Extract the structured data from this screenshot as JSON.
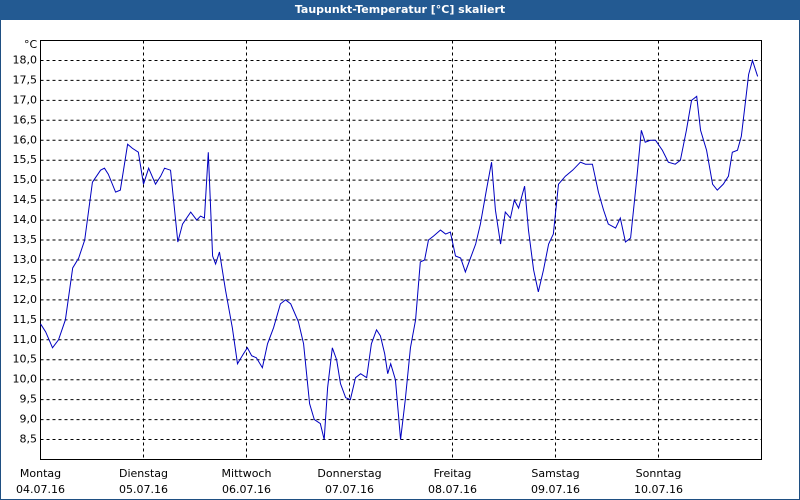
{
  "chart_data": {
    "type": "line",
    "title": "Taupunkt-Temperatur [°C] skaliert",
    "y_unit": "°C",
    "xlim": [
      0,
      168
    ],
    "ylim": [
      8,
      18.5
    ],
    "xticks": [
      {
        "value": 0,
        "label": "Montag",
        "date": "04.07.16"
      },
      {
        "value": 24,
        "label": "Dienstag",
        "date": "05.07.16"
      },
      {
        "value": 48,
        "label": "Mittwoch",
        "date": "06.07.16"
      },
      {
        "value": 72,
        "label": "Donnerstag",
        "date": "07.07.16"
      },
      {
        "value": 96,
        "label": "Freitag",
        "date": "08.07.16"
      },
      {
        "value": 120,
        "label": "Samstag",
        "date": "09.07.16"
      },
      {
        "value": 144,
        "label": "Sonntag",
        "date": "10.07.16"
      }
    ],
    "yticks": [
      {
        "value": 8.5,
        "label": "8,5"
      },
      {
        "value": 9,
        "label": "9,0"
      },
      {
        "value": 9.5,
        "label": "9,5"
      },
      {
        "value": 10,
        "label": "10,0"
      },
      {
        "value": 10.5,
        "label": "10,5"
      },
      {
        "value": 11,
        "label": "11,0"
      },
      {
        "value": 11.5,
        "label": "11,5"
      },
      {
        "value": 12,
        "label": "12,0"
      },
      {
        "value": 12.5,
        "label": "12,5"
      },
      {
        "value": 13,
        "label": "13,0"
      },
      {
        "value": 13.5,
        "label": "13,5"
      },
      {
        "value": 14,
        "label": "14,0"
      },
      {
        "value": 14.5,
        "label": "14,5"
      },
      {
        "value": 15,
        "label": "15,0"
      },
      {
        "value": 15.5,
        "label": "15,5"
      },
      {
        "value": 16,
        "label": "16,0"
      },
      {
        "value": 16.5,
        "label": "16,5"
      },
      {
        "value": 17,
        "label": "17,0"
      },
      {
        "value": 17.5,
        "label": "17,5"
      },
      {
        "value": 18,
        "label": "18,0"
      }
    ],
    "grid": true,
    "x": [
      0,
      1.2,
      2.8,
      4.2,
      5.8,
      7.5,
      8.9,
      10.3,
      12.1,
      14.0,
      14.9,
      15.8,
      17.5,
      18.6,
      20.3,
      21.4,
      22.8,
      24.0,
      25.2,
      26.8,
      28.0,
      28.9,
      30.3,
      32.0,
      33.1,
      35.0,
      36.4,
      37.3,
      38.2,
      39.1,
      40.1,
      40.8,
      41.7,
      43.1,
      44.7,
      45.9,
      47.3,
      48.2,
      49.2,
      50.3,
      51.7,
      52.9,
      54.3,
      55.9,
      57.1,
      58.3,
      60.1,
      61.3,
      62.7,
      63.8,
      65.2,
      66.1,
      66.9,
      68.0,
      69.0,
      69.9,
      71.1,
      72.2,
      73.4,
      74.6,
      76.0,
      77.1,
      78.3,
      79.2,
      80.2,
      80.9,
      81.6,
      82.7,
      83.9,
      85.0,
      86.2,
      87.4,
      88.5,
      89.5,
      90.4,
      91.6,
      93.2,
      94.4,
      95.5,
      96.7,
      97.9,
      99.0,
      100.2,
      101.4,
      102.5,
      103.9,
      105.1,
      106.0,
      107.2,
      108.3,
      109.5,
      110.4,
      111.4,
      112.8,
      113.7,
      114.9,
      116.0,
      117.2,
      118.4,
      119.5,
      120.7,
      122.3,
      124.0,
      125.8,
      127.0,
      128.6,
      130.0,
      131.2,
      132.3,
      134.0,
      135.1,
      136.3,
      137.5,
      138.9,
      140.0,
      140.9,
      142.1,
      143.3,
      144.9,
      146.3,
      147.9,
      149.1,
      150.5,
      151.7,
      152.9,
      153.8,
      155.2,
      156.6,
      157.7,
      159.1,
      160.3,
      161.2,
      162.4,
      163.3,
      164.3,
      165.0,
      165.9,
      167.1
    ],
    "series": [
      {
        "color": "#0000c0",
        "values": [
          11.4,
          11.2,
          10.8,
          11.0,
          11.5,
          12.8,
          13.05,
          13.5,
          14.95,
          15.25,
          15.3,
          15.15,
          14.7,
          14.75,
          15.9,
          15.8,
          15.7,
          14.9,
          15.3,
          14.9,
          15.1,
          15.3,
          15.25,
          13.45,
          13.9,
          14.2,
          14.0,
          14.1,
          14.05,
          15.7,
          13.1,
          12.9,
          13.2,
          12.25,
          11.3,
          10.4,
          10.65,
          10.8,
          10.6,
          10.55,
          10.3,
          10.9,
          11.3,
          11.9,
          12.0,
          11.9,
          11.45,
          10.9,
          9.4,
          9.0,
          8.9,
          8.5,
          9.8,
          10.8,
          10.5,
          9.9,
          9.55,
          9.5,
          10.05,
          10.15,
          10.05,
          10.9,
          11.25,
          11.1,
          10.65,
          10.15,
          10.4,
          10.0,
          8.5,
          9.5,
          10.8,
          11.5,
          12.95,
          13.0,
          13.5,
          13.6,
          13.75,
          13.65,
          13.7,
          13.1,
          13.05,
          12.7,
          13.05,
          13.4,
          13.9,
          14.75,
          15.45,
          14.25,
          13.4,
          14.2,
          14.05,
          14.5,
          14.3,
          14.85,
          13.75,
          12.75,
          12.2,
          12.75,
          13.4,
          13.65,
          14.9,
          15.1,
          15.25,
          15.45,
          15.4,
          15.4,
          14.7,
          14.25,
          13.9,
          13.8,
          14.05,
          13.45,
          13.55,
          15.0,
          16.25,
          15.95,
          16.0,
          16.0,
          15.75,
          15.45,
          15.4,
          15.5,
          16.25,
          17.0,
          17.1,
          16.25,
          15.75,
          14.9,
          14.75,
          14.9,
          15.1,
          15.7,
          15.75,
          16.1,
          17.0,
          17.65,
          18.0,
          17.6
        ]
      }
    ]
  }
}
